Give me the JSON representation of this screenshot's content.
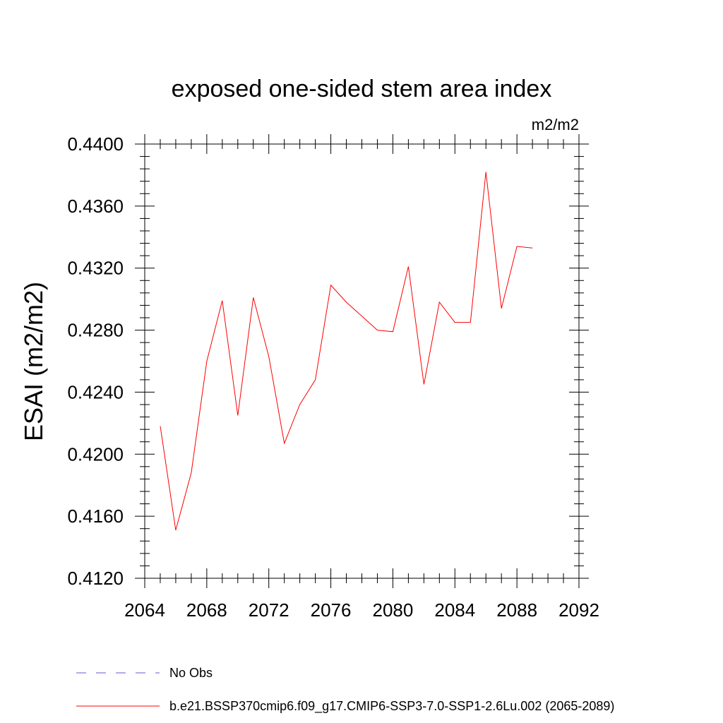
{
  "chart_data": {
    "type": "line",
    "title": "exposed one-sided stem area index",
    "units": "m2/m2",
    "ylabel": "ESAI  (m2/m2)",
    "xlabel": "",
    "xlim": [
      2064,
      2092
    ],
    "ylim": [
      0.412,
      0.44
    ],
    "xticks": [
      2064,
      2068,
      2072,
      2076,
      2080,
      2084,
      2088,
      2092
    ],
    "yticks": [
      0.412,
      0.416,
      0.42,
      0.424,
      0.428,
      0.432,
      0.436,
      0.44
    ],
    "ytick_labels": [
      "0.4120",
      "0.4160",
      "0.4200",
      "0.4240",
      "0.4280",
      "0.4320",
      "0.4360",
      "0.4400"
    ],
    "xtick_labels": [
      "2064",
      "2068",
      "2072",
      "2076",
      "2080",
      "2084",
      "2088",
      "2092"
    ],
    "grid": false,
    "series": [
      {
        "name": "b.e21.BSSP370cmip6.f09_g17.CMIP6-SSP3-7.0-SSP1-2.6Lu.002 (2065-2089)",
        "color": "#ff0000",
        "style": "solid",
        "x": [
          2065,
          2066,
          2067,
          2068,
          2069,
          2070,
          2071,
          2072,
          2073,
          2074,
          2075,
          2076,
          2077,
          2078,
          2079,
          2080,
          2081,
          2082,
          2083,
          2084,
          2085,
          2086,
          2087,
          2088,
          2089
        ],
        "y": [
          0.4218,
          0.4151,
          0.4188,
          0.426,
          0.4299,
          0.4225,
          0.4301,
          0.4263,
          0.4207,
          0.4232,
          0.4248,
          0.4309,
          0.4298,
          0.4289,
          0.428,
          0.4279,
          0.4321,
          0.4245,
          0.4298,
          0.4285,
          0.4285,
          0.4382,
          0.4294,
          0.4334,
          0.4333
        ]
      }
    ],
    "legend": [
      {
        "label": "No Obs",
        "color": "#6a5acd",
        "style": "dashed"
      },
      {
        "label": "b.e21.BSSP370cmip6.f09_g17.CMIP6-SSP3-7.0-SSP1-2.6Lu.002 (2065-2089)",
        "color": "#ff0000",
        "style": "solid"
      }
    ],
    "legend_placement": "bottom"
  }
}
